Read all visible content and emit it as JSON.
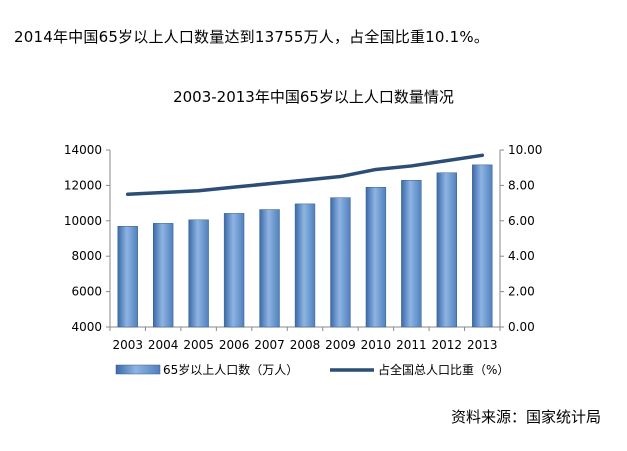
{
  "headline": "2014年中国65岁以上人口数量达到13755万人，占全国比重10.1%。",
  "source": "资料来源：国家统计局",
  "chart_data": {
    "type": "bar+line",
    "title": "2003-2013年中国65岁以上人口数量情况",
    "categories": [
      "2003",
      "2004",
      "2005",
      "2006",
      "2007",
      "2008",
      "2009",
      "2010",
      "2011",
      "2012",
      "2013"
    ],
    "series": [
      {
        "name": "65岁以上人口数（万人）",
        "type": "bar",
        "axis": "left",
        "color": "#4f81bd",
        "values": [
          9692,
          9857,
          10055,
          10419,
          10636,
          10956,
          11307,
          11894,
          12288,
          12714,
          13161
        ]
      },
      {
        "name": "占全国总人口比重（%）",
        "type": "line",
        "axis": "right",
        "color": "#2c4d75",
        "values": [
          7.5,
          7.6,
          7.7,
          7.9,
          8.1,
          8.3,
          8.5,
          8.9,
          9.1,
          9.4,
          9.7
        ]
      }
    ],
    "y_left": {
      "min": 4000,
      "max": 14000,
      "ticks": [
        "4000",
        "6000",
        "8000",
        "10000",
        "12000",
        "14000"
      ]
    },
    "y_right": {
      "min": 0,
      "max": 10,
      "ticks": [
        "0.00",
        "2.00",
        "4.00",
        "6.00",
        "8.00",
        "10.00"
      ]
    },
    "legend": "bottom",
    "grid": false
  }
}
